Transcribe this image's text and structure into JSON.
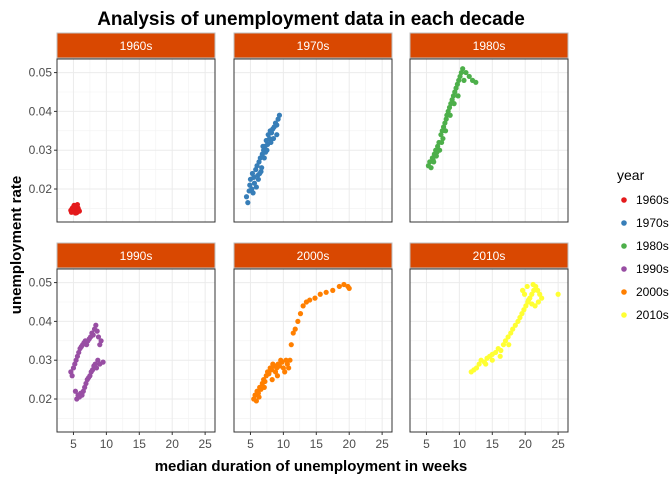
{
  "chart_data": {
    "type": "scatter",
    "title": "Analysis of unemployment data in each decade",
    "xlabel": "median duration of unemployment in weeks",
    "ylabel": "unemployment rate",
    "xlim": [
      2.5,
      26.5
    ],
    "ylim": [
      0.0115,
      0.0535
    ],
    "x_ticks": [
      5,
      10,
      15,
      20,
      25
    ],
    "y_ticks": [
      0.02,
      0.03,
      0.04,
      0.05
    ],
    "x_tick_labels": [
      "5",
      "10",
      "15",
      "20",
      "25"
    ],
    "y_tick_labels": [
      "0.02",
      "0.03",
      "0.04",
      "0.05"
    ],
    "grid": true,
    "strip_color": "#d94801",
    "legend_title": "year",
    "legend_position": "right",
    "series": [
      {
        "name": "1960s",
        "color": "#e41a1c",
        "points": [
          [
            4.6,
            0.0145
          ],
          [
            4.8,
            0.015
          ],
          [
            5.0,
            0.0148
          ],
          [
            5.2,
            0.0142
          ],
          [
            5.4,
            0.0155
          ],
          [
            5.5,
            0.0147
          ],
          [
            5.7,
            0.0151
          ],
          [
            5.9,
            0.0143
          ],
          [
            4.7,
            0.014
          ],
          [
            5.1,
            0.0158
          ],
          [
            5.3,
            0.0138
          ],
          [
            5.6,
            0.016
          ],
          [
            5.8,
            0.0146
          ],
          [
            4.9,
            0.0152
          ],
          [
            5.0,
            0.0141
          ],
          [
            5.5,
            0.0139
          ],
          [
            5.2,
            0.0156
          ],
          [
            5.7,
            0.0144
          ]
        ]
      },
      {
        "name": "1970s",
        "color": "#377eb8",
        "points": [
          [
            4.4,
            0.018
          ],
          [
            4.6,
            0.0165
          ],
          [
            4.8,
            0.0195
          ],
          [
            4.9,
            0.021
          ],
          [
            5.0,
            0.0225
          ],
          [
            5.2,
            0.02
          ],
          [
            5.3,
            0.024
          ],
          [
            5.5,
            0.023
          ],
          [
            5.6,
            0.0215
          ],
          [
            5.8,
            0.025
          ],
          [
            6.0,
            0.026
          ],
          [
            6.1,
            0.0235
          ],
          [
            6.3,
            0.027
          ],
          [
            6.5,
            0.028
          ],
          [
            6.6,
            0.0245
          ],
          [
            6.8,
            0.029
          ],
          [
            7.0,
            0.03
          ],
          [
            7.2,
            0.031
          ],
          [
            7.4,
            0.0325
          ],
          [
            7.5,
            0.03
          ],
          [
            7.7,
            0.034
          ],
          [
            7.9,
            0.033
          ],
          [
            8.0,
            0.035
          ],
          [
            8.2,
            0.0345
          ],
          [
            8.4,
            0.0355
          ],
          [
            8.6,
            0.036
          ],
          [
            8.8,
            0.037
          ],
          [
            9.0,
            0.0365
          ],
          [
            9.2,
            0.038
          ],
          [
            9.4,
            0.039
          ],
          [
            9.0,
            0.034
          ],
          [
            8.5,
            0.033
          ],
          [
            6.2,
            0.0225
          ],
          [
            5.9,
            0.0205
          ],
          [
            6.4,
            0.024
          ],
          [
            7.1,
            0.028
          ],
          [
            6.9,
            0.031
          ],
          [
            7.6,
            0.0315
          ],
          [
            8.1,
            0.032
          ],
          [
            5.4,
            0.019
          ],
          [
            6.7,
            0.0255
          ],
          [
            7.3,
            0.0295
          ]
        ]
      },
      {
        "name": "1980s",
        "color": "#4daf4a",
        "points": [
          [
            5.3,
            0.026
          ],
          [
            5.5,
            0.027
          ],
          [
            5.7,
            0.0255
          ],
          [
            5.9,
            0.028
          ],
          [
            6.0,
            0.0275
          ],
          [
            6.2,
            0.029
          ],
          [
            6.4,
            0.03
          ],
          [
            6.5,
            0.0285
          ],
          [
            6.7,
            0.031
          ],
          [
            6.9,
            0.032
          ],
          [
            7.0,
            0.03
          ],
          [
            7.2,
            0.034
          ],
          [
            7.4,
            0.035
          ],
          [
            7.5,
            0.033
          ],
          [
            7.6,
            0.036
          ],
          [
            7.8,
            0.037
          ],
          [
            8.0,
            0.038
          ],
          [
            8.1,
            0.039
          ],
          [
            8.3,
            0.04
          ],
          [
            8.5,
            0.041
          ],
          [
            8.7,
            0.042
          ],
          [
            8.9,
            0.043
          ],
          [
            9.1,
            0.044
          ],
          [
            9.3,
            0.045
          ],
          [
            9.5,
            0.046
          ],
          [
            9.7,
            0.047
          ],
          [
            9.9,
            0.048
          ],
          [
            10.1,
            0.049
          ],
          [
            10.3,
            0.05
          ],
          [
            10.5,
            0.051
          ],
          [
            10.7,
            0.048
          ],
          [
            11.0,
            0.05
          ],
          [
            11.5,
            0.049
          ],
          [
            12.0,
            0.048
          ],
          [
            12.5,
            0.0475
          ],
          [
            9.8,
            0.044
          ],
          [
            9.2,
            0.042
          ],
          [
            8.6,
            0.039
          ],
          [
            7.9,
            0.035
          ],
          [
            7.3,
            0.032
          ],
          [
            6.6,
            0.0295
          ],
          [
            6.1,
            0.027
          ]
        ]
      },
      {
        "name": "1990s",
        "color": "#984ea3",
        "points": [
          [
            4.6,
            0.027
          ],
          [
            4.8,
            0.026
          ],
          [
            5.0,
            0.028
          ],
          [
            5.2,
            0.029
          ],
          [
            5.4,
            0.03
          ],
          [
            5.6,
            0.031
          ],
          [
            5.8,
            0.032
          ],
          [
            6.0,
            0.033
          ],
          [
            6.2,
            0.0335
          ],
          [
            6.4,
            0.034
          ],
          [
            6.6,
            0.0345
          ],
          [
            6.8,
            0.035
          ],
          [
            7.0,
            0.034
          ],
          [
            7.2,
            0.035
          ],
          [
            7.4,
            0.0355
          ],
          [
            7.6,
            0.036
          ],
          [
            7.8,
            0.037
          ],
          [
            8.0,
            0.0365
          ],
          [
            8.2,
            0.038
          ],
          [
            8.4,
            0.039
          ],
          [
            8.6,
            0.0375
          ],
          [
            8.8,
            0.036
          ],
          [
            9.0,
            0.034
          ],
          [
            9.2,
            0.035
          ],
          [
            5.5,
            0.02
          ],
          [
            5.7,
            0.021
          ],
          [
            5.9,
            0.0205
          ],
          [
            6.1,
            0.0215
          ],
          [
            6.3,
            0.021
          ],
          [
            6.5,
            0.022
          ],
          [
            6.7,
            0.023
          ],
          [
            6.9,
            0.024
          ],
          [
            7.1,
            0.025
          ],
          [
            7.3,
            0.0255
          ],
          [
            7.5,
            0.026
          ],
          [
            7.7,
            0.027
          ],
          [
            7.9,
            0.0275
          ],
          [
            8.1,
            0.0285
          ],
          [
            8.3,
            0.029
          ],
          [
            8.5,
            0.028
          ],
          [
            8.7,
            0.03
          ],
          [
            9.0,
            0.029
          ],
          [
            9.5,
            0.0295
          ],
          [
            5.3,
            0.022
          ]
        ]
      },
      {
        "name": "2000s",
        "color": "#ff7f00",
        "points": [
          [
            5.5,
            0.02
          ],
          [
            5.7,
            0.021
          ],
          [
            5.9,
            0.0195
          ],
          [
            6.0,
            0.022
          ],
          [
            6.2,
            0.0215
          ],
          [
            6.4,
            0.023
          ],
          [
            6.6,
            0.0225
          ],
          [
            6.8,
            0.024
          ],
          [
            7.0,
            0.025
          ],
          [
            7.2,
            0.0245
          ],
          [
            7.4,
            0.026
          ],
          [
            7.6,
            0.027
          ],
          [
            7.8,
            0.0265
          ],
          [
            8.0,
            0.028
          ],
          [
            8.2,
            0.0275
          ],
          [
            8.4,
            0.029
          ],
          [
            8.6,
            0.0285
          ],
          [
            8.8,
            0.027
          ],
          [
            9.0,
            0.028
          ],
          [
            9.2,
            0.029
          ],
          [
            9.4,
            0.0285
          ],
          [
            9.6,
            0.03
          ],
          [
            9.8,
            0.0295
          ],
          [
            10.0,
            0.028
          ],
          [
            10.2,
            0.027
          ],
          [
            10.4,
            0.03
          ],
          [
            10.6,
            0.029
          ],
          [
            10.8,
            0.028
          ],
          [
            11.0,
            0.03
          ],
          [
            11.2,
            0.034
          ],
          [
            11.5,
            0.037
          ],
          [
            11.8,
            0.038
          ],
          [
            12.2,
            0.04
          ],
          [
            12.6,
            0.042
          ],
          [
            13.0,
            0.044
          ],
          [
            13.5,
            0.045
          ],
          [
            14.0,
            0.0455
          ],
          [
            14.8,
            0.046
          ],
          [
            15.6,
            0.047
          ],
          [
            16.5,
            0.0475
          ],
          [
            17.5,
            0.048
          ],
          [
            18.5,
            0.049
          ],
          [
            19.2,
            0.0495
          ],
          [
            19.8,
            0.049
          ],
          [
            20.0,
            0.0485
          ],
          [
            6.3,
            0.0205
          ],
          [
            7.1,
            0.023
          ],
          [
            8.3,
            0.025
          ],
          [
            9.1,
            0.026
          ]
        ]
      },
      {
        "name": "2010s",
        "color": "#ffff33",
        "points": [
          [
            11.8,
            0.027
          ],
          [
            12.2,
            0.0275
          ],
          [
            12.6,
            0.028
          ],
          [
            13.0,
            0.029
          ],
          [
            13.3,
            0.03
          ],
          [
            13.8,
            0.0295
          ],
          [
            14.2,
            0.0305
          ],
          [
            14.6,
            0.031
          ],
          [
            15.0,
            0.0315
          ],
          [
            15.5,
            0.032
          ],
          [
            15.9,
            0.033
          ],
          [
            16.3,
            0.0325
          ],
          [
            16.7,
            0.034
          ],
          [
            17.0,
            0.035
          ],
          [
            17.4,
            0.036
          ],
          [
            17.8,
            0.037
          ],
          [
            18.1,
            0.038
          ],
          [
            18.5,
            0.039
          ],
          [
            18.9,
            0.04
          ],
          [
            19.2,
            0.041
          ],
          [
            19.5,
            0.042
          ],
          [
            19.8,
            0.043
          ],
          [
            20.1,
            0.044
          ],
          [
            20.4,
            0.045
          ],
          [
            20.7,
            0.046
          ],
          [
            21.0,
            0.047
          ],
          [
            21.3,
            0.048
          ],
          [
            21.6,
            0.049
          ],
          [
            21.9,
            0.048
          ],
          [
            22.2,
            0.047
          ],
          [
            22.5,
            0.046
          ],
          [
            22.0,
            0.045
          ],
          [
            21.5,
            0.044
          ],
          [
            21.0,
            0.0445
          ],
          [
            20.5,
            0.0455
          ],
          [
            19.9,
            0.047
          ],
          [
            19.6,
            0.048
          ],
          [
            20.3,
            0.049
          ],
          [
            21.2,
            0.0495
          ],
          [
            17.5,
            0.034
          ],
          [
            16.2,
            0.031
          ],
          [
            15.0,
            0.03
          ],
          [
            14.0,
            0.029
          ],
          [
            25.0,
            0.047
          ]
        ]
      }
    ]
  }
}
